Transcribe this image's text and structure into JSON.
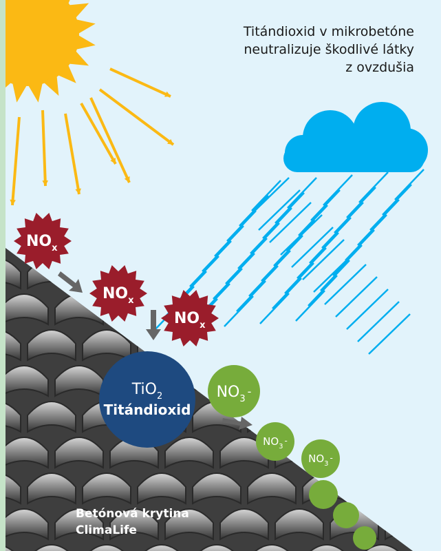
{
  "title": {
    "line1": "Titándioxid v mikrobetóne",
    "line2": "neutralizuje škodlivé látky",
    "line3": "z ovzdušia"
  },
  "nox": [
    {
      "main": "NO",
      "sub": "x"
    },
    {
      "main": "NO",
      "sub": "x"
    },
    {
      "main": "NO",
      "sub": "x"
    }
  ],
  "catalyst": {
    "line1_main": "TiO",
    "line1_sub": "2",
    "line2": "Titándioxid"
  },
  "nitrate": [
    {
      "main": "NO",
      "sub": "3",
      "suffix": "-"
    },
    {
      "main": "NO",
      "sub": "3",
      "suffix": "-"
    },
    {
      "main": "NO",
      "sub": "3",
      "suffix": "-"
    }
  ],
  "roof_caption": {
    "line1": "Betónová krytina",
    "line2": "ClimaLife"
  },
  "colors": {
    "frame": "#c5e3c8",
    "sky": "#e2f3fb",
    "sun": "#fbb914",
    "cloud": "#00aeef",
    "rain": "#00aeef",
    "nox": "#9a1d2b",
    "catalyst": "#1e4a80",
    "nitrate": "#77ac3b",
    "arrow": "#666666",
    "roof": "#5a5a5a"
  }
}
